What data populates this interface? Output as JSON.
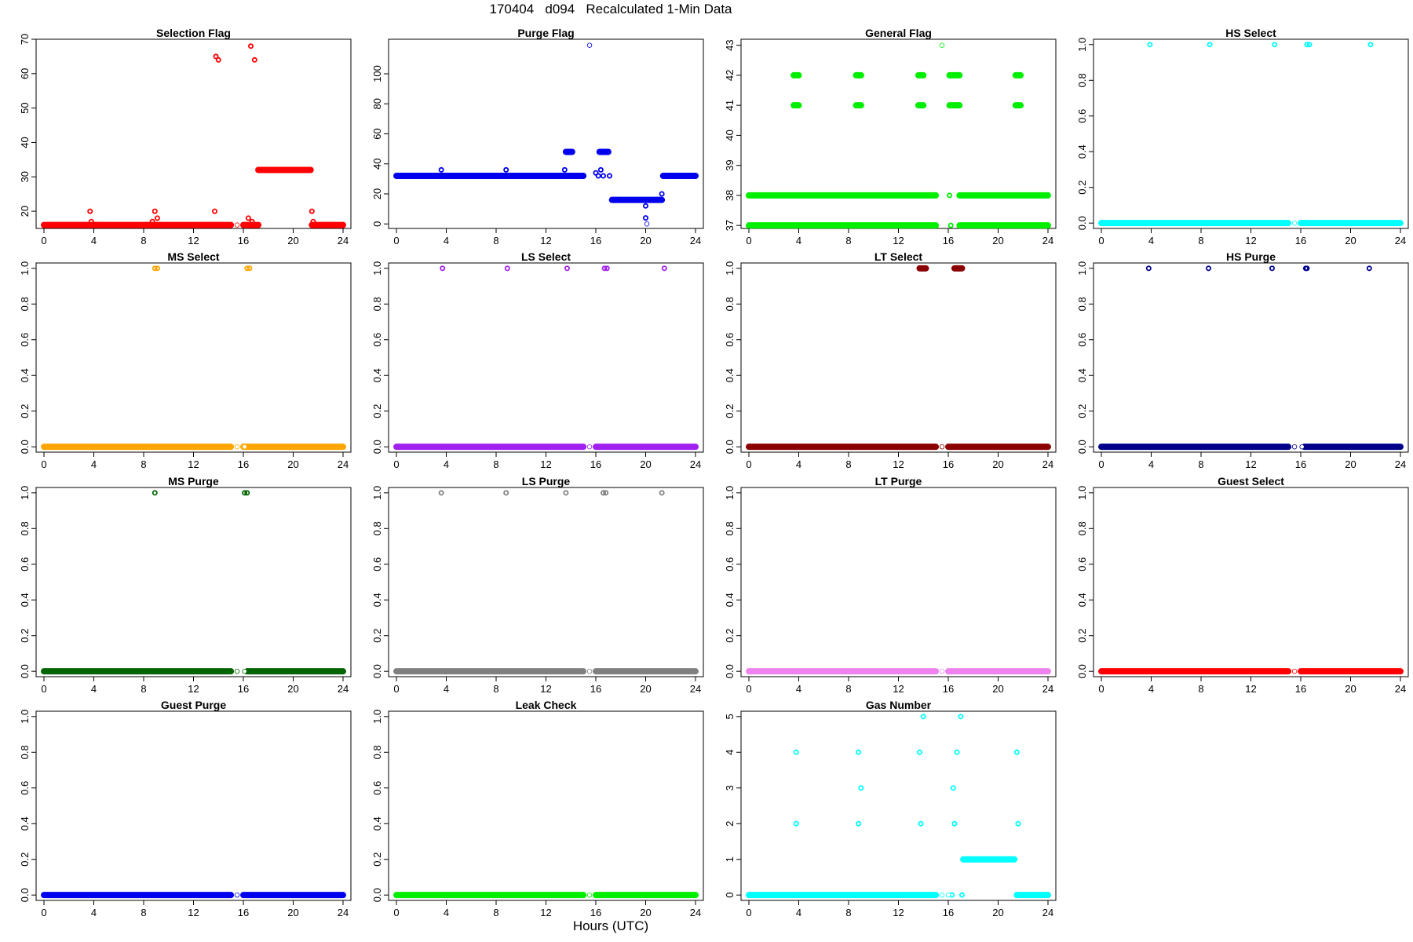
{
  "title": "170404   d094   Recalculated 1-Min Data",
  "xlabel": "Hours (UTC)",
  "chart_data": [
    {
      "type": "scatter",
      "title": "Selection Flag",
      "color": "#ff0000",
      "ylim": [
        15,
        70
      ],
      "yticks": [
        20,
        30,
        40,
        50,
        60,
        70
      ],
      "xlim": [
        0,
        24
      ],
      "xticks": [
        0,
        4,
        8,
        12,
        16,
        20,
        24
      ],
      "segments": [
        {
          "x0": 0,
          "x1": 15,
          "y": 16
        },
        {
          "x0": 16,
          "x1": 17.2,
          "y": 16
        },
        {
          "x0": 17.2,
          "x1": 21.4,
          "y": 32
        },
        {
          "x0": 21.5,
          "x1": 24,
          "y": 16
        }
      ],
      "points": [
        {
          "x": 3.7,
          "y": 20
        },
        {
          "x": 3.8,
          "y": 17
        },
        {
          "x": 8.7,
          "y": 17
        },
        {
          "x": 8.9,
          "y": 20
        },
        {
          "x": 9.1,
          "y": 18
        },
        {
          "x": 13.7,
          "y": 20
        },
        {
          "x": 13.8,
          "y": 65
        },
        {
          "x": 14,
          "y": 64
        },
        {
          "x": 16.4,
          "y": 18
        },
        {
          "x": 16.6,
          "y": 68
        },
        {
          "x": 16.7,
          "y": 17
        },
        {
          "x": 16.9,
          "y": 64
        },
        {
          "x": 17.1,
          "y": 16
        },
        {
          "x": 21.5,
          "y": 20
        },
        {
          "x": 21.6,
          "y": 17
        }
      ],
      "open_points": [
        {
          "x": 15.5,
          "y": 16
        }
      ]
    },
    {
      "type": "scatter",
      "title": "Purge Flag",
      "color": "#0000ee",
      "ylim": [
        -3,
        123
      ],
      "yticks": [
        0,
        20,
        40,
        60,
        80,
        100
      ],
      "xlim": [
        0,
        24
      ],
      "xticks": [
        0,
        4,
        8,
        12,
        16,
        20,
        24
      ],
      "segments": [
        {
          "x0": 0,
          "x1": 13.5,
          "y": 32
        },
        {
          "x0": 13.5,
          "x1": 15,
          "y": 32
        },
        {
          "x0": 13.6,
          "x1": 14.1,
          "y": 48
        },
        {
          "x0": 16.3,
          "x1": 17,
          "y": 48
        },
        {
          "x0": 17.3,
          "x1": 21.3,
          "y": 16
        },
        {
          "x0": 21.4,
          "x1": 24,
          "y": 32
        }
      ],
      "points": [
        {
          "x": 3.6,
          "y": 36
        },
        {
          "x": 8.8,
          "y": 36
        },
        {
          "x": 13.5,
          "y": 36
        },
        {
          "x": 16,
          "y": 34
        },
        {
          "x": 16.2,
          "y": 32
        },
        {
          "x": 16.4,
          "y": 36
        },
        {
          "x": 16.6,
          "y": 32
        },
        {
          "x": 17.1,
          "y": 32
        },
        {
          "x": 20,
          "y": 12
        },
        {
          "x": 20,
          "y": 4
        },
        {
          "x": 21.3,
          "y": 20
        }
      ],
      "open_points": [
        {
          "x": 15.5,
          "y": 119
        },
        {
          "x": 20.1,
          "y": 0
        }
      ]
    },
    {
      "type": "scatter",
      "title": "General Flag",
      "color": "#00ee00",
      "ylim": [
        36.9,
        43.2
      ],
      "yticks": [
        37,
        38,
        39,
        40,
        41,
        42,
        43
      ],
      "xlim": [
        0,
        24
      ],
      "xticks": [
        0,
        4,
        8,
        12,
        16,
        20,
        24
      ],
      "segments": [
        {
          "x0": 0,
          "x1": 15,
          "y": 37
        },
        {
          "x0": 0,
          "x1": 15,
          "y": 38
        },
        {
          "x0": 16.9,
          "x1": 24,
          "y": 37
        },
        {
          "x0": 16.9,
          "x1": 24,
          "y": 38
        },
        {
          "x0": 3.6,
          "x1": 4,
          "y": 41
        },
        {
          "x0": 3.6,
          "x1": 4,
          "y": 42
        },
        {
          "x0": 8.6,
          "x1": 9,
          "y": 41
        },
        {
          "x0": 8.6,
          "x1": 9,
          "y": 42
        },
        {
          "x0": 13.6,
          "x1": 14,
          "y": 41
        },
        {
          "x0": 13.6,
          "x1": 14,
          "y": 42
        },
        {
          "x0": 16.1,
          "x1": 16.9,
          "y": 41
        },
        {
          "x0": 16.1,
          "x1": 16.9,
          "y": 42
        },
        {
          "x0": 21.4,
          "x1": 21.8,
          "y": 41
        },
        {
          "x0": 21.4,
          "x1": 21.8,
          "y": 42
        }
      ],
      "points": [
        {
          "x": 16.1,
          "y": 38
        },
        {
          "x": 16.2,
          "y": 37
        }
      ],
      "open_points": [
        {
          "x": 15.5,
          "y": 43
        }
      ]
    },
    {
      "type": "scatter",
      "title": "HS Select",
      "color": "#00ffff",
      "ylim": [
        -0.03,
        1.03
      ],
      "yticks": [
        0.0,
        0.2,
        0.4,
        0.6,
        0.8,
        1.0
      ],
      "xlim": [
        0,
        24
      ],
      "xticks": [
        0,
        4,
        8,
        12,
        16,
        20,
        24
      ],
      "segments": [
        {
          "x0": 0,
          "x1": 15,
          "y": 0
        },
        {
          "x0": 16,
          "x1": 24,
          "y": 0
        }
      ],
      "points": [
        {
          "x": 3.9,
          "y": 1
        },
        {
          "x": 8.7,
          "y": 1
        },
        {
          "x": 13.9,
          "y": 1
        },
        {
          "x": 16.5,
          "y": 1
        },
        {
          "x": 16.7,
          "y": 1
        },
        {
          "x": 21.6,
          "y": 1
        }
      ],
      "open_points": [
        {
          "x": 15.5,
          "y": 0
        }
      ]
    },
    {
      "type": "scatter",
      "title": "MS Select",
      "color": "#ffa500",
      "ylim": [
        -0.03,
        1.03
      ],
      "yticks": [
        0.0,
        0.2,
        0.4,
        0.6,
        0.8,
        1.0
      ],
      "xlim": [
        0,
        24
      ],
      "xticks": [
        0,
        4,
        8,
        12,
        16,
        20,
        24
      ],
      "segments": [
        {
          "x0": 0,
          "x1": 15,
          "y": 0
        },
        {
          "x0": 16,
          "x1": 24,
          "y": 0
        }
      ],
      "points": [
        {
          "x": 8.9,
          "y": 1
        },
        {
          "x": 9.1,
          "y": 1
        },
        {
          "x": 16.3,
          "y": 1
        },
        {
          "x": 16.5,
          "y": 1
        }
      ],
      "open_points": [
        {
          "x": 15.5,
          "y": 0
        },
        {
          "x": 16.1,
          "y": 0
        }
      ]
    },
    {
      "type": "scatter",
      "title": "LS Select",
      "color": "#a020f0",
      "ylim": [
        -0.03,
        1.03
      ],
      "yticks": [
        0.0,
        0.2,
        0.4,
        0.6,
        0.8,
        1.0
      ],
      "xlim": [
        0,
        24
      ],
      "xticks": [
        0,
        4,
        8,
        12,
        16,
        20,
        24
      ],
      "segments": [
        {
          "x0": 0,
          "x1": 15,
          "y": 0
        },
        {
          "x0": 16,
          "x1": 24,
          "y": 0
        }
      ],
      "points": [
        {
          "x": 3.7,
          "y": 1
        },
        {
          "x": 8.9,
          "y": 1
        },
        {
          "x": 13.7,
          "y": 1
        },
        {
          "x": 16.7,
          "y": 1
        },
        {
          "x": 16.9,
          "y": 1
        },
        {
          "x": 21.5,
          "y": 1
        }
      ],
      "open_points": [
        {
          "x": 15.5,
          "y": 0
        }
      ]
    },
    {
      "type": "scatter",
      "title": "LT Select",
      "color": "#8b0000",
      "ylim": [
        -0.03,
        1.03
      ],
      "yticks": [
        0.0,
        0.2,
        0.4,
        0.6,
        0.8,
        1.0
      ],
      "xlim": [
        0,
        24
      ],
      "xticks": [
        0,
        4,
        8,
        12,
        16,
        20,
        24
      ],
      "segments": [
        {
          "x0": 0,
          "x1": 15,
          "y": 0
        },
        {
          "x0": 16,
          "x1": 24,
          "y": 0
        },
        {
          "x0": 13.7,
          "x1": 14.2,
          "y": 1
        },
        {
          "x0": 16.5,
          "x1": 17.1,
          "y": 1
        }
      ],
      "points": [],
      "open_points": [
        {
          "x": 15.5,
          "y": 0
        }
      ]
    },
    {
      "type": "scatter",
      "title": "HS Purge",
      "color": "#00008b",
      "ylim": [
        -0.03,
        1.03
      ],
      "yticks": [
        0.0,
        0.2,
        0.4,
        0.6,
        0.8,
        1.0
      ],
      "xlim": [
        0,
        24
      ],
      "xticks": [
        0,
        4,
        8,
        12,
        16,
        20,
        24
      ],
      "segments": [
        {
          "x0": 0,
          "x1": 15,
          "y": 0
        },
        {
          "x0": 16.3,
          "x1": 24,
          "y": 0
        }
      ],
      "points": [
        {
          "x": 3.8,
          "y": 1
        },
        {
          "x": 8.6,
          "y": 1
        },
        {
          "x": 13.7,
          "y": 1
        },
        {
          "x": 16.4,
          "y": 1
        },
        {
          "x": 16.5,
          "y": 1
        },
        {
          "x": 21.5,
          "y": 1
        }
      ],
      "open_points": [
        {
          "x": 15.5,
          "y": 0
        },
        {
          "x": 16.1,
          "y": 0
        }
      ]
    },
    {
      "type": "scatter",
      "title": "MS Purge",
      "color": "#006400",
      "ylim": [
        -0.03,
        1.03
      ],
      "yticks": [
        0.0,
        0.2,
        0.4,
        0.6,
        0.8,
        1.0
      ],
      "xlim": [
        0,
        24
      ],
      "xticks": [
        0,
        4,
        8,
        12,
        16,
        20,
        24
      ],
      "segments": [
        {
          "x0": 0,
          "x1": 15,
          "y": 0
        },
        {
          "x0": 16.3,
          "x1": 24,
          "y": 0
        }
      ],
      "points": [
        {
          "x": 8.9,
          "y": 1
        },
        {
          "x": 16.1,
          "y": 1
        },
        {
          "x": 16.3,
          "y": 1
        }
      ],
      "open_points": [
        {
          "x": 15.5,
          "y": 0
        },
        {
          "x": 16.1,
          "y": 0
        }
      ]
    },
    {
      "type": "scatter",
      "title": "LS Purge",
      "color": "#808080",
      "ylim": [
        -0.03,
        1.03
      ],
      "yticks": [
        0.0,
        0.2,
        0.4,
        0.6,
        0.8,
        1.0
      ],
      "xlim": [
        0,
        24
      ],
      "xticks": [
        0,
        4,
        8,
        12,
        16,
        20,
        24
      ],
      "segments": [
        {
          "x0": 0,
          "x1": 15,
          "y": 0
        },
        {
          "x0": 16,
          "x1": 24,
          "y": 0
        }
      ],
      "points": [
        {
          "x": 3.6,
          "y": 1
        },
        {
          "x": 8.8,
          "y": 1
        },
        {
          "x": 13.6,
          "y": 1
        },
        {
          "x": 16.6,
          "y": 1
        },
        {
          "x": 16.8,
          "y": 1
        },
        {
          "x": 21.3,
          "y": 1
        }
      ],
      "open_points": [
        {
          "x": 15.5,
          "y": 0
        }
      ]
    },
    {
      "type": "scatter",
      "title": "LT Purge",
      "color": "#ee82ee",
      "ylim": [
        -0.03,
        1.03
      ],
      "yticks": [
        0.0,
        0.2,
        0.4,
        0.6,
        0.8,
        1.0
      ],
      "xlim": [
        0,
        24
      ],
      "xticks": [
        0,
        4,
        8,
        12,
        16,
        20,
        24
      ],
      "segments": [
        {
          "x0": 0,
          "x1": 15,
          "y": 0
        },
        {
          "x0": 16,
          "x1": 24,
          "y": 0
        }
      ],
      "points": [],
      "open_points": [
        {
          "x": 15.5,
          "y": 0
        }
      ]
    },
    {
      "type": "scatter",
      "title": "Guest Select",
      "color": "#ff0000",
      "ylim": [
        -0.03,
        1.03
      ],
      "yticks": [
        0.0,
        0.2,
        0.4,
        0.6,
        0.8,
        1.0
      ],
      "xlim": [
        0,
        24
      ],
      "xticks": [
        0,
        4,
        8,
        12,
        16,
        20,
        24
      ],
      "segments": [
        {
          "x0": 0,
          "x1": 15,
          "y": 0
        },
        {
          "x0": 16,
          "x1": 24,
          "y": 0
        }
      ],
      "points": [],
      "open_points": [
        {
          "x": 15.5,
          "y": 0
        }
      ]
    },
    {
      "type": "scatter",
      "title": "Guest Purge",
      "color": "#0000ee",
      "ylim": [
        -0.03,
        1.03
      ],
      "yticks": [
        0.0,
        0.2,
        0.4,
        0.6,
        0.8,
        1.0
      ],
      "xlim": [
        0,
        24
      ],
      "xticks": [
        0,
        4,
        8,
        12,
        16,
        20,
        24
      ],
      "segments": [
        {
          "x0": 0,
          "x1": 15,
          "y": 0
        },
        {
          "x0": 16,
          "x1": 24,
          "y": 0
        }
      ],
      "points": [],
      "open_points": [
        {
          "x": 15.5,
          "y": 0
        }
      ]
    },
    {
      "type": "scatter",
      "title": "Leak Check",
      "color": "#00ee00",
      "ylim": [
        -0.03,
        1.03
      ],
      "yticks": [
        0.0,
        0.2,
        0.4,
        0.6,
        0.8,
        1.0
      ],
      "xlim": [
        0,
        24
      ],
      "xticks": [
        0,
        4,
        8,
        12,
        16,
        20,
        24
      ],
      "segments": [
        {
          "x0": 0,
          "x1": 15,
          "y": 0
        },
        {
          "x0": 16,
          "x1": 24,
          "y": 0
        }
      ],
      "points": [],
      "open_points": [
        {
          "x": 15.5,
          "y": 0
        }
      ]
    },
    {
      "type": "scatter",
      "title": "Gas Number",
      "color": "#00ffff",
      "ylim": [
        -0.15,
        5.15
      ],
      "yticks": [
        0,
        1,
        2,
        3,
        4,
        5
      ],
      "xlim": [
        0,
        24
      ],
      "xticks": [
        0,
        4,
        8,
        12,
        16,
        20,
        24
      ],
      "segments": [
        {
          "x0": 0,
          "x1": 15,
          "y": 0
        },
        {
          "x0": 17.2,
          "x1": 21.3,
          "y": 1
        },
        {
          "x0": 21.5,
          "x1": 24,
          "y": 0
        }
      ],
      "points": [
        {
          "x": 3.8,
          "y": 4
        },
        {
          "x": 3.8,
          "y": 2
        },
        {
          "x": 8.8,
          "y": 4
        },
        {
          "x": 8.8,
          "y": 2
        },
        {
          "x": 9,
          "y": 3
        },
        {
          "x": 13.7,
          "y": 4
        },
        {
          "x": 13.8,
          "y": 2
        },
        {
          "x": 14,
          "y": 5
        },
        {
          "x": 16.4,
          "y": 3
        },
        {
          "x": 16.5,
          "y": 2
        },
        {
          "x": 16.7,
          "y": 4
        },
        {
          "x": 17,
          "y": 5
        },
        {
          "x": 21.5,
          "y": 4
        },
        {
          "x": 21.6,
          "y": 2
        },
        {
          "x": 16.3,
          "y": 0
        },
        {
          "x": 17.1,
          "y": 0
        }
      ],
      "open_points": [
        {
          "x": 15.5,
          "y": 0
        },
        {
          "x": 16,
          "y": 0
        }
      ]
    }
  ]
}
